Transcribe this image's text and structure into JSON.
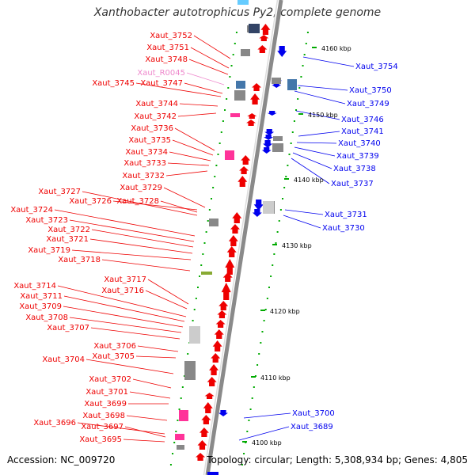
{
  "title": "Xanthobacter autotrophicus Py2, complete genome",
  "footer": {
    "accession": "Accession: NC_009720",
    "summary": "Topology: circular; Length: 5,308,934 bp; Genes: 4,805"
  },
  "colors": {
    "forward_gene": "#ee0000",
    "reverse_gene": "#0000ee",
    "rna_label": "#ee88cc",
    "rna_feature": "#ff3399",
    "hypothetical": "#888888",
    "axis": "#999999",
    "ticks": "#00aa00"
  },
  "scale_labels": [
    "4160 kbp",
    "4150 kbp",
    "4140 kbp",
    "4130 kbp",
    "4120 kbp",
    "4110 kbp",
    "4100 kbp"
  ],
  "left_labels": [
    "Xaut_3752",
    "Xaut_3751",
    "Xaut_3748",
    "Xaut_R0045",
    "Xaut_3747",
    "Xaut_3745",
    "Xaut_3744",
    "Xaut_3742",
    "Xaut_3736",
    "Xaut_3735",
    "Xaut_3734",
    "Xaut_3733",
    "Xaut_3732",
    "Xaut_3729",
    "Xaut_3727",
    "Xaut_3726",
    "Xaut_3728",
    "Xaut_3724",
    "Xaut_3723",
    "Xaut_3722",
    "Xaut_3721",
    "Xaut_3719",
    "Xaut_3718",
    "Xaut_3717",
    "Xaut_3716",
    "Xaut_3714",
    "Xaut_3711",
    "Xaut_3709",
    "Xaut_3708",
    "Xaut_3707",
    "Xaut_3706",
    "Xaut_3705",
    "Xaut_3704",
    "Xaut_3702",
    "Xaut_3701",
    "Xaut_3699",
    "Xaut_3698",
    "Xaut_3696",
    "Xaut_3697",
    "Xaut_3695"
  ],
  "right_labels": [
    "Xaut_3754",
    "Xaut_3750",
    "Xaut_3749",
    "Xaut_3746",
    "Xaut_3741",
    "Xaut_3740",
    "Xaut_3739",
    "Xaut_3738",
    "Xaut_3737",
    "Xaut_3731",
    "Xaut_3730",
    "Xaut_3700",
    "Xaut_3689"
  ]
}
